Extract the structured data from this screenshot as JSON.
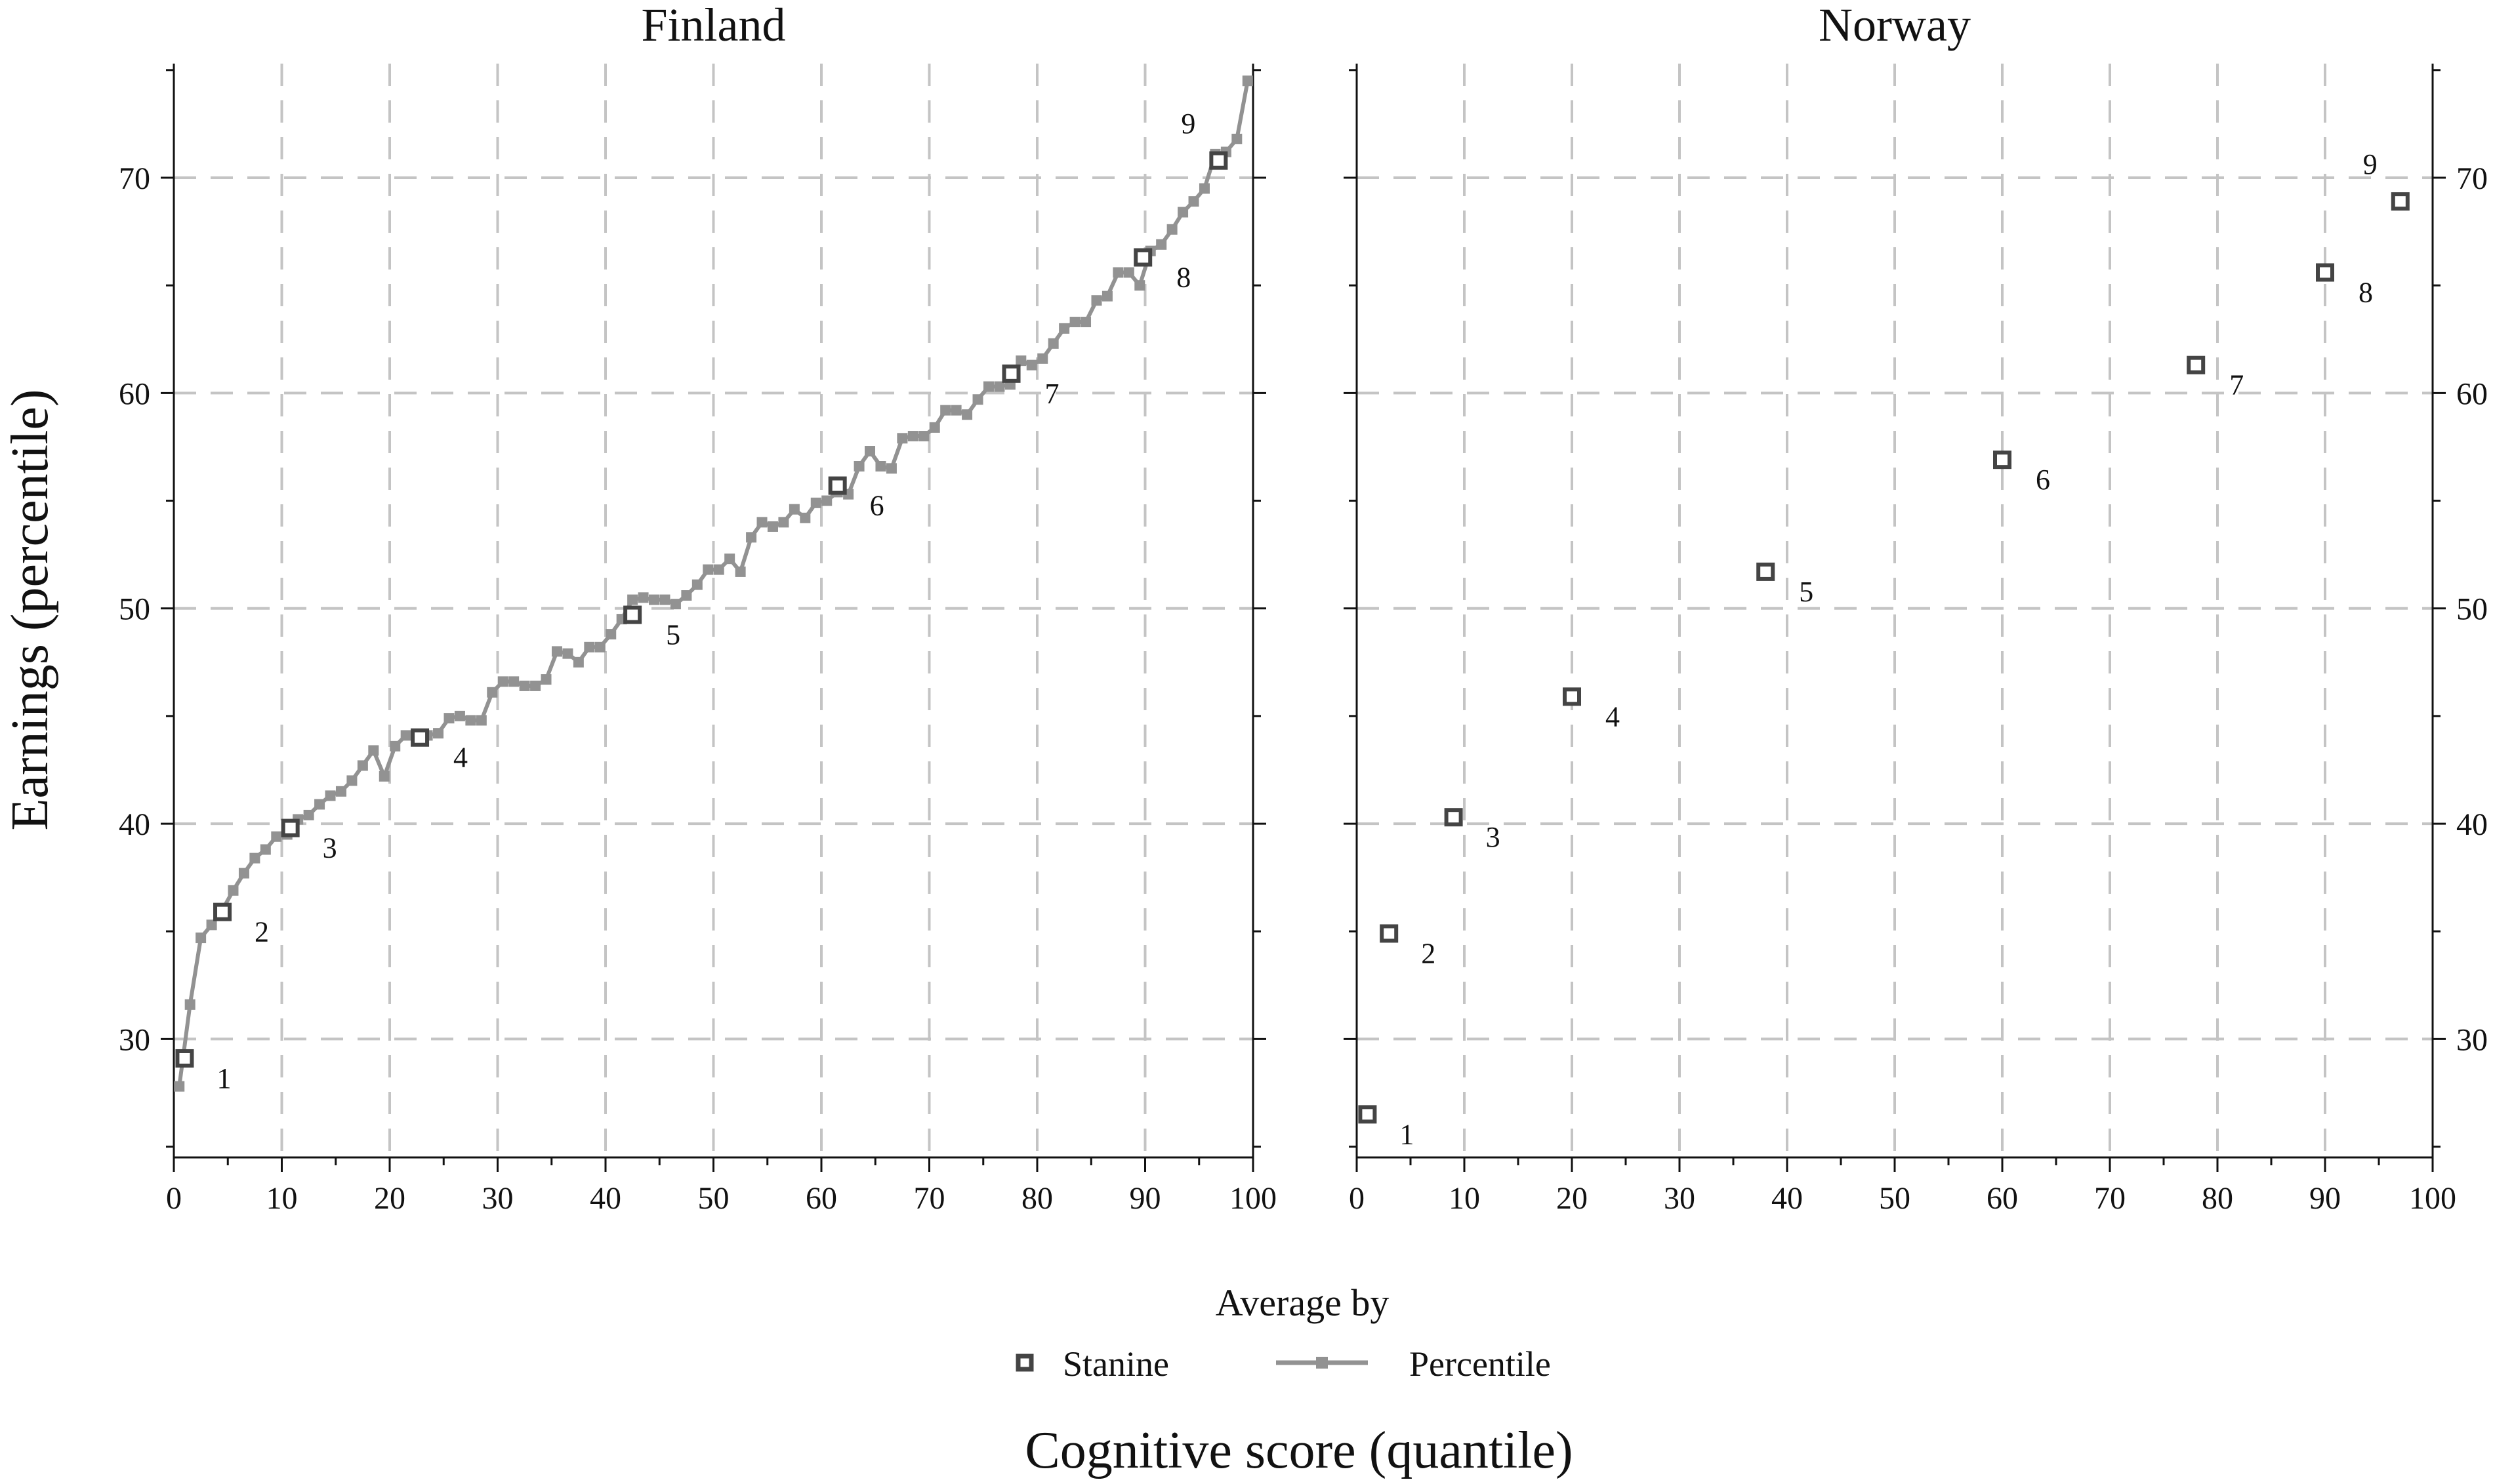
{
  "figure": {
    "y_axis_label": "Earnings (percentile)",
    "x_axis_label": "Cognitive score (quantile)",
    "legend": {
      "title": "Average by",
      "items": [
        {
          "label": "Stanine",
          "marker": "hollow-square"
        },
        {
          "label": "Percentile",
          "marker": "line-with-square"
        }
      ]
    },
    "colors": {
      "stanine": "#444444",
      "percentile": "#929292",
      "grid": "#c4c4c4",
      "axis": "#111111"
    }
  },
  "chart_data": [
    {
      "type": "line",
      "title": "Finland",
      "xlim": [
        0,
        100
      ],
      "ylim": [
        24.5,
        75.3
      ],
      "xticks": [
        0,
        10,
        20,
        30,
        40,
        50,
        60,
        70,
        80,
        90,
        100
      ],
      "yticks": [
        30,
        40,
        50,
        60,
        70
      ],
      "grid": true,
      "series": [
        {
          "name": "Percentile",
          "x": [
            0.5,
            1.5,
            2.5,
            3.5,
            4.5,
            5.5,
            6.5,
            7.5,
            8.5,
            9.5,
            10.5,
            11.5,
            12.5,
            13.5,
            14.5,
            15.5,
            16.5,
            17.5,
            18.5,
            19.5,
            20.5,
            21.5,
            22.5,
            23.5,
            24.5,
            25.5,
            26.5,
            27.5,
            28.5,
            29.5,
            30.5,
            31.5,
            32.5,
            33.5,
            34.5,
            35.5,
            36.5,
            37.5,
            38.5,
            39.5,
            40.5,
            41.5,
            42.5,
            43.5,
            44.5,
            45.5,
            46.5,
            47.5,
            48.5,
            49.5,
            50.5,
            51.5,
            52.5,
            53.5,
            54.5,
            55.5,
            56.5,
            57.5,
            58.5,
            59.5,
            60.5,
            61.5,
            62.5,
            63.5,
            64.5,
            65.5,
            66.5,
            67.5,
            68.5,
            69.5,
            70.5,
            71.5,
            72.5,
            73.5,
            74.5,
            75.5,
            76.5,
            77.5,
            78.5,
            79.5,
            80.5,
            81.5,
            82.5,
            83.5,
            84.5,
            85.5,
            86.5,
            87.5,
            88.5,
            89.5,
            90.5,
            91.5,
            92.5,
            93.5,
            94.5,
            95.5,
            96.5,
            97.5,
            98.5,
            99.5
          ],
          "values": [
            27.8,
            31.6,
            34.7,
            35.3,
            36.0,
            36.9,
            37.7,
            38.4,
            38.8,
            39.4,
            39.5,
            40.2,
            40.4,
            40.9,
            41.3,
            41.5,
            42.0,
            42.7,
            43.4,
            42.2,
            43.6,
            44.1,
            44.0,
            44.1,
            44.2,
            44.9,
            45.0,
            44.8,
            44.8,
            46.1,
            46.6,
            46.6,
            46.4,
            46.4,
            46.7,
            48.0,
            47.9,
            47.5,
            48.2,
            48.2,
            48.8,
            49.5,
            50.4,
            50.5,
            50.4,
            50.4,
            50.2,
            50.6,
            51.1,
            51.8,
            51.8,
            52.3,
            51.7,
            53.3,
            54.0,
            53.8,
            54.0,
            54.6,
            54.2,
            54.9,
            55.0,
            55.4,
            55.3,
            56.6,
            57.3,
            56.6,
            56.5,
            57.9,
            58.0,
            58.0,
            58.4,
            59.2,
            59.2,
            59.0,
            59.7,
            60.3,
            60.3,
            60.4,
            61.5,
            61.3,
            61.6,
            62.3,
            63.0,
            63.3,
            63.3,
            64.3,
            64.5,
            65.6,
            65.6,
            65.0,
            66.6,
            66.9,
            67.6,
            68.4,
            68.9,
            69.5,
            71.1,
            71.2,
            71.8,
            74.5
          ]
        },
        {
          "name": "Stanine",
          "x": [
            1,
            4.5,
            10.8,
            22.8,
            42.5,
            61.5,
            77.6,
            89.8,
            96.8
          ],
          "values": [
            29.1,
            35.9,
            39.8,
            44.0,
            49.7,
            55.7,
            60.9,
            66.3,
            70.8
          ],
          "labels": [
            "1",
            "2",
            "3",
            "4",
            "5",
            "6",
            "7",
            "8",
            "9"
          ]
        }
      ]
    },
    {
      "type": "scatter",
      "title": "Norway",
      "xlim": [
        0,
        100
      ],
      "ylim": [
        24.5,
        75.3
      ],
      "xticks": [
        0,
        10,
        20,
        30,
        40,
        50,
        60,
        70,
        80,
        90,
        100
      ],
      "yticks": [
        30,
        40,
        50,
        60,
        70
      ],
      "grid": true,
      "series": [
        {
          "name": "Stanine",
          "x": [
            1,
            3,
            9,
            20,
            38,
            60,
            78,
            90,
            97
          ],
          "values": [
            26.5,
            34.9,
            40.3,
            45.9,
            51.7,
            56.9,
            61.3,
            65.6,
            68.9
          ],
          "labels": [
            "1",
            "2",
            "3",
            "4",
            "5",
            "6",
            "7",
            "8",
            "9"
          ]
        }
      ]
    }
  ]
}
